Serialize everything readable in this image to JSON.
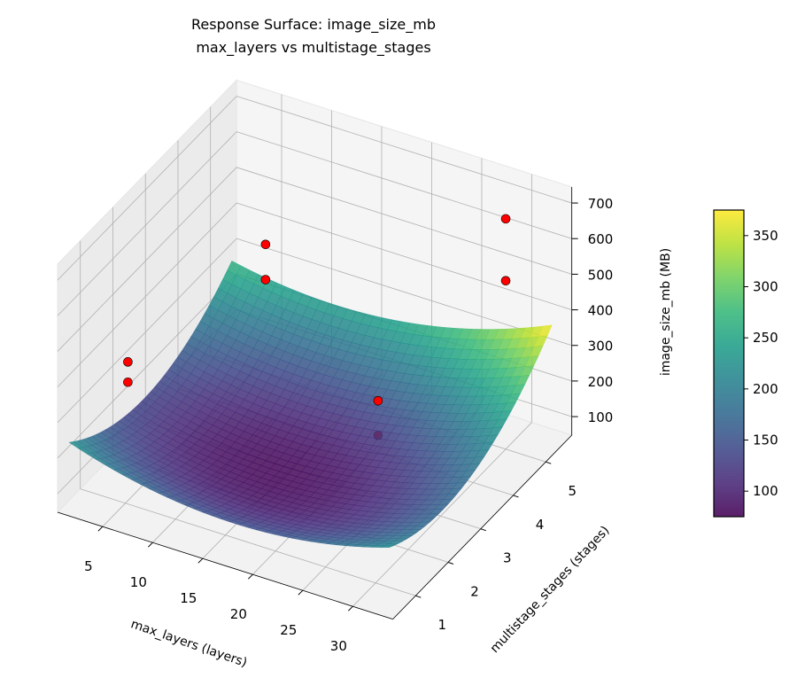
{
  "chart_data": {
    "type": "surface3d",
    "title": "Response Surface: image_size_mb",
    "subtitle": "max_layers vs multistage_stages",
    "xlabel": "max_layers (layers)",
    "ylabel": "multistage_stages (stages)",
    "zlabel": "image_size_mb (MB)",
    "colorbar_label": "",
    "colormap": "viridis",
    "xlim": [
      0.5,
      34
    ],
    "ylim": [
      0.3,
      5.8
    ],
    "zlim": [
      48,
      745
    ],
    "xticks": [
      5,
      10,
      15,
      20,
      25,
      30
    ],
    "yticks": [
      1,
      2,
      3,
      4,
      5
    ],
    "zticks": [
      100,
      200,
      300,
      400,
      500,
      600,
      700
    ],
    "colorbar_ticks": [
      100,
      150,
      200,
      250,
      300,
      350
    ],
    "colorbar_range": [
      75,
      375
    ],
    "surface": {
      "x_range": [
        1,
        33
      ],
      "y_range": [
        0.5,
        5.5
      ],
      "model": "z = 80 + 0.294*(x-15)^2 + 18.06*(y-2.5)^2 + 0.719*(x-15)*(y-2.5)"
    },
    "points": [
      {
        "x": 2,
        "y": 2,
        "z": 267
      },
      {
        "x": 2,
        "y": 2,
        "z": 324
      },
      {
        "x": 6,
        "y": 5,
        "z": 309
      },
      {
        "x": 6,
        "y": 5,
        "z": 408
      },
      {
        "x": 30,
        "y": 5,
        "z": 521
      },
      {
        "x": 30,
        "y": 5,
        "z": 695
      },
      {
        "x": 27,
        "y": 2,
        "z": 439
      },
      {
        "x": 27,
        "y": 2,
        "z": 342
      }
    ],
    "point_color": "#ff0000",
    "grid": true
  }
}
